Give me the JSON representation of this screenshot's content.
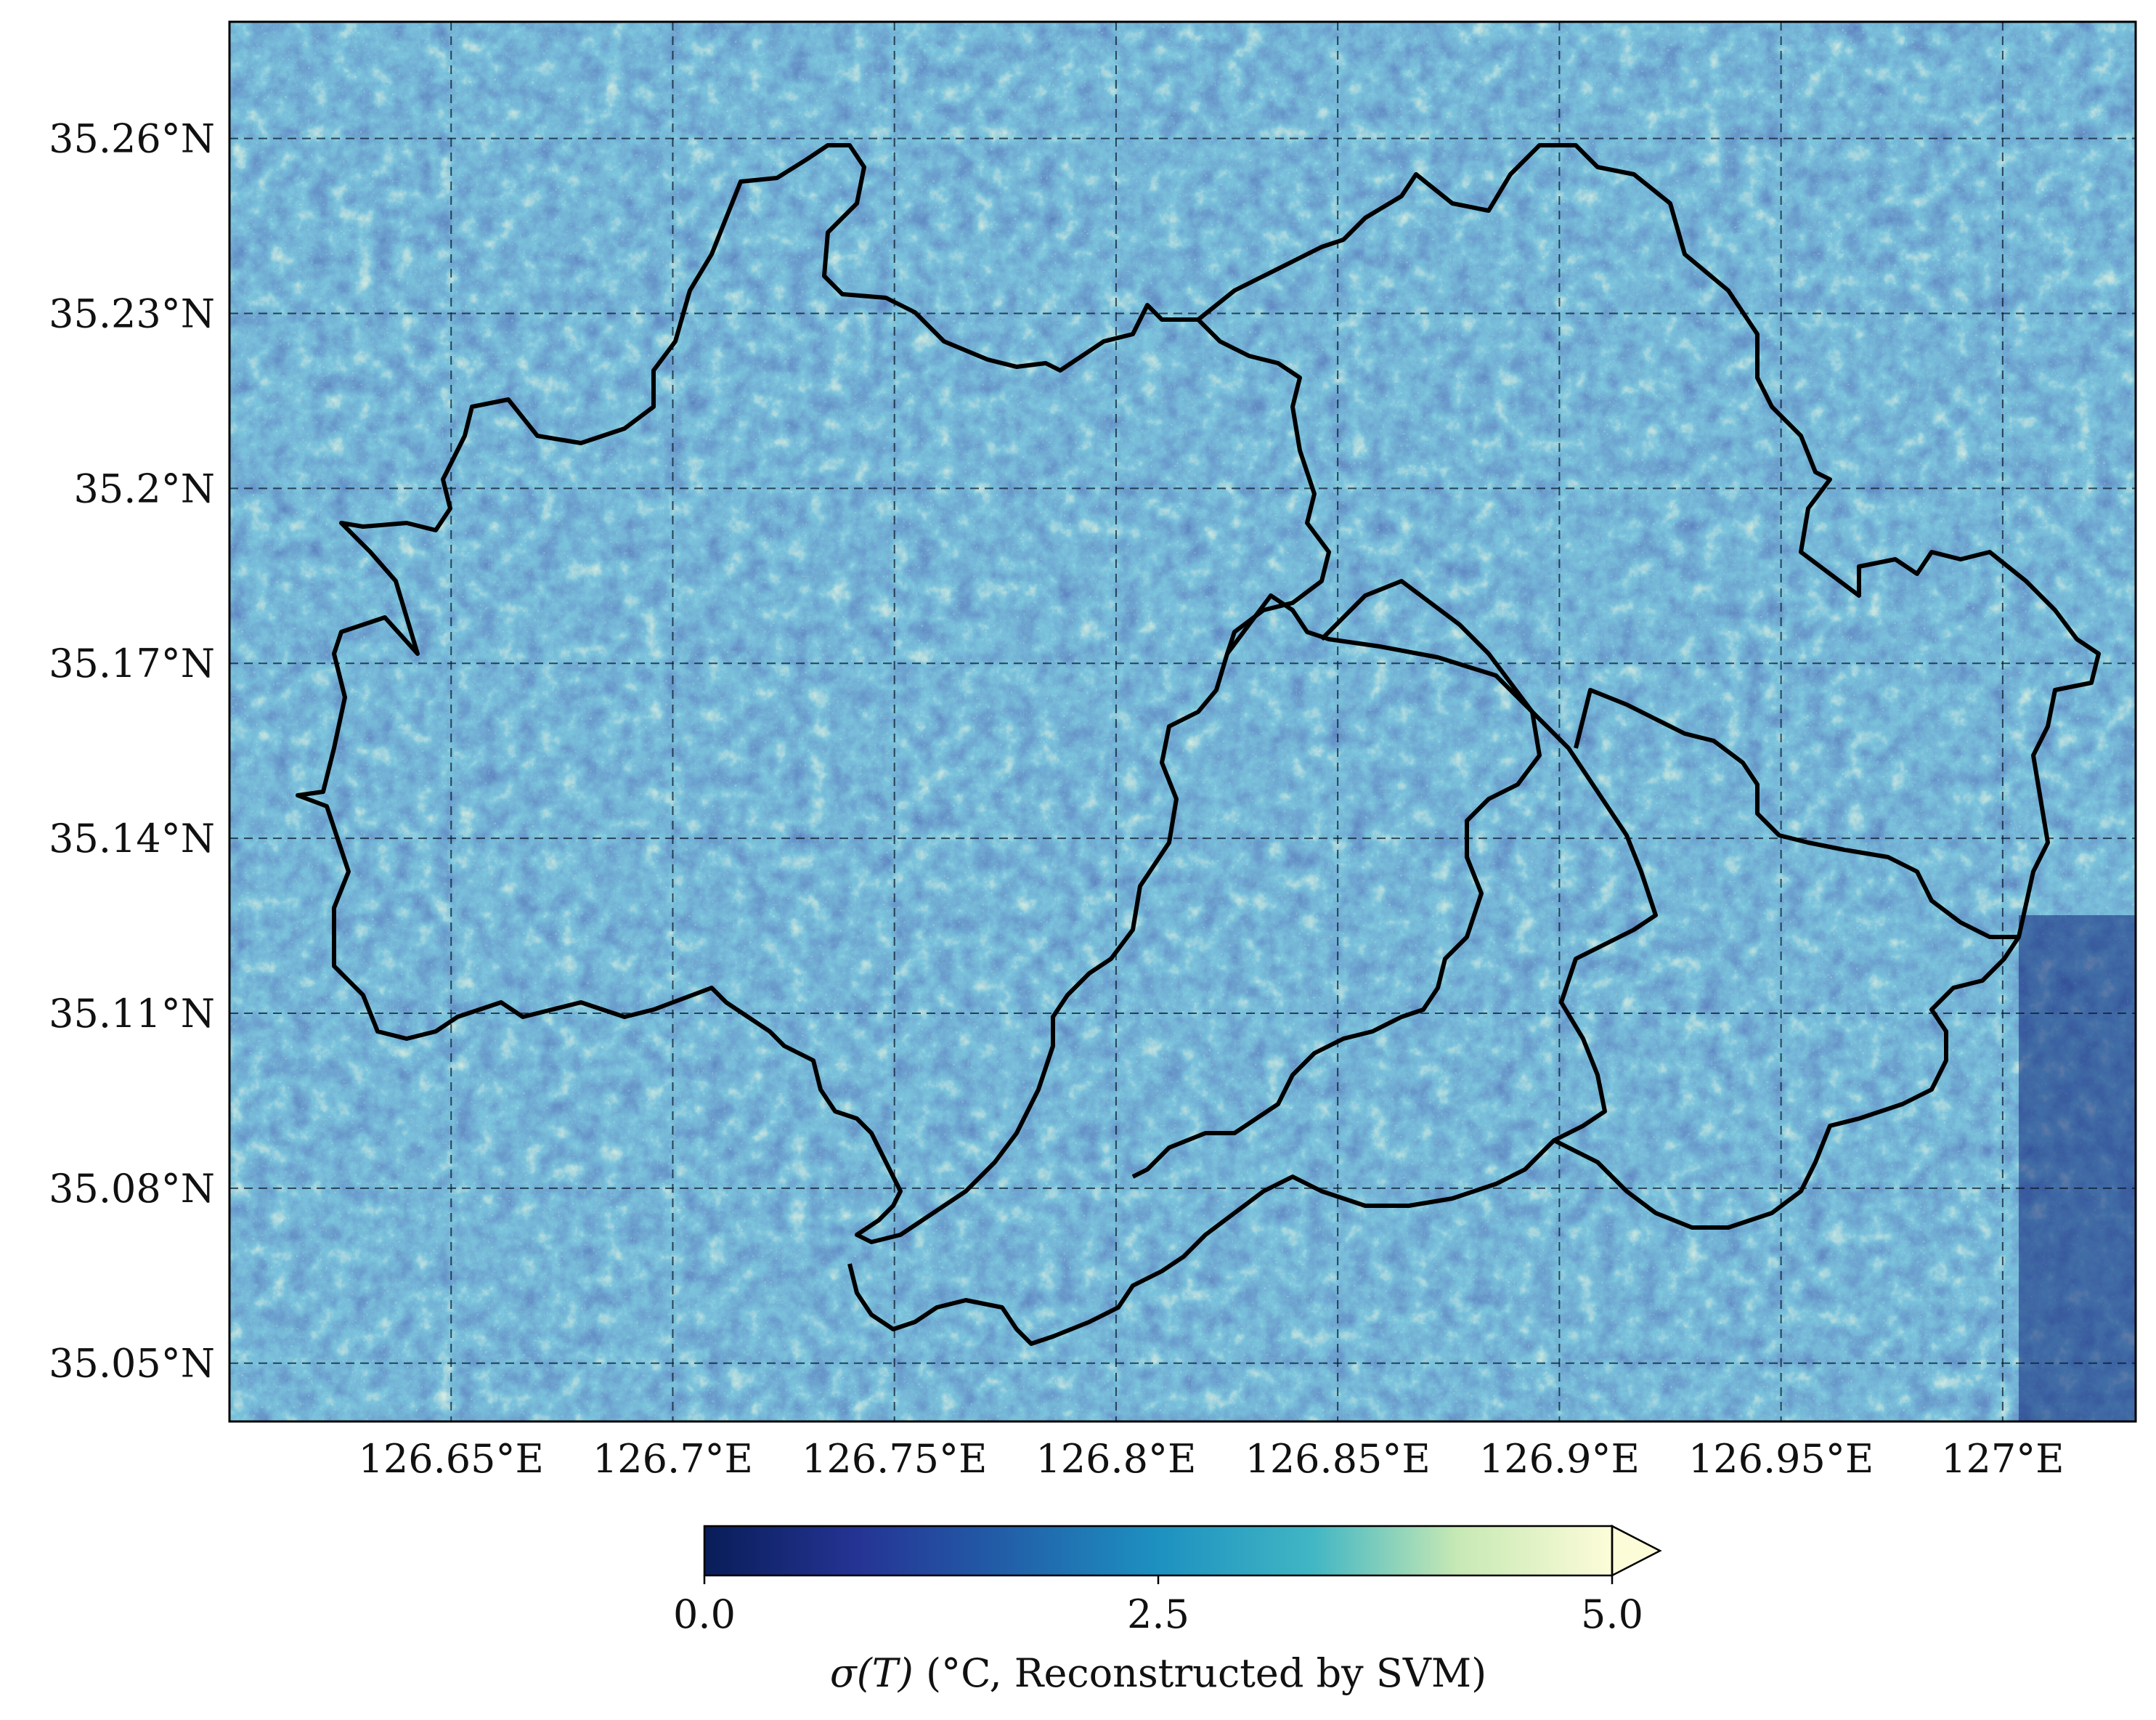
{
  "map": {
    "type": "raster-map",
    "variable": "σ(T)",
    "projection": "lat-lon",
    "lon_ticks": [
      {
        "value": 126.65,
        "label": "126.65°E"
      },
      {
        "value": 126.7,
        "label": "126.7°E"
      },
      {
        "value": 126.75,
        "label": "126.75°E"
      },
      {
        "value": 126.8,
        "label": "126.8°E"
      },
      {
        "value": 126.85,
        "label": "126.85°E"
      },
      {
        "value": 126.9,
        "label": "126.9°E"
      },
      {
        "value": 126.95,
        "label": "126.95°E"
      },
      {
        "value": 127.0,
        "label": "127°E"
      }
    ],
    "lat_ticks": [
      {
        "value": 35.26,
        "label": "35.26°N"
      },
      {
        "value": 35.23,
        "label": "35.23°N"
      },
      {
        "value": 35.2,
        "label": "35.2°N"
      },
      {
        "value": 35.17,
        "label": "35.17°N"
      },
      {
        "value": 35.14,
        "label": "35.14°N"
      },
      {
        "value": 35.11,
        "label": "35.11°N"
      },
      {
        "value": 35.08,
        "label": "35.08°N"
      },
      {
        "value": 35.05,
        "label": "35.05°N"
      }
    ],
    "lon_range": [
      126.6,
      127.03
    ],
    "lat_range": [
      35.04,
      35.28
    ],
    "grid": true,
    "grid_style": "dashed",
    "boundary_color": "#000000",
    "colormap": "YlGnBu_r",
    "colors": {
      "low": "#0d1a5c",
      "mid": "#2a9fba",
      "high": "#fdfcd2"
    }
  },
  "colorbar": {
    "min": 0.0,
    "max": 5.0,
    "extend": "max",
    "orientation": "horizontal",
    "ticks": [
      {
        "value": 0.0,
        "label": "0.0"
      },
      {
        "value": 2.5,
        "label": "2.5"
      },
      {
        "value": 5.0,
        "label": "5.0"
      }
    ],
    "label_symbol": "σ(T)",
    "label_rest": " (°C, Reconstructed by SVM)"
  }
}
